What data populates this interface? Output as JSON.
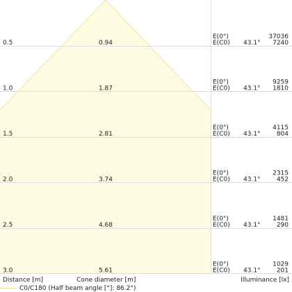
{
  "rows": [
    {
      "distance": "0.5",
      "diameter": "0.94",
      "e0_label": "E(0°)",
      "ec0_label": "E(C0)",
      "angle": "43.1°",
      "e0_value": "37036",
      "ec0_value": "7240"
    },
    {
      "distance": "1.0",
      "diameter": "1.87",
      "e0_label": "E(0°)",
      "ec0_label": "E(C0)",
      "angle": "43.1°",
      "e0_value": "9259",
      "ec0_value": "1810"
    },
    {
      "distance": "1.5",
      "diameter": "2.81",
      "e0_label": "E(0°)",
      "ec0_label": "E(C0)",
      "angle": "43.1°",
      "e0_value": "4115",
      "ec0_value": "804"
    },
    {
      "distance": "2.0",
      "diameter": "3.74",
      "e0_label": "E(0°)",
      "ec0_label": "E(C0)",
      "angle": "43.1°",
      "e0_value": "2315",
      "ec0_value": "452"
    },
    {
      "distance": "2.5",
      "diameter": "4.68",
      "e0_label": "E(0°)",
      "ec0_label": "E(C0)",
      "angle": "43.1°",
      "e0_value": "1481",
      "ec0_value": "290"
    },
    {
      "distance": "3.0",
      "diameter": "5.61",
      "e0_label": "E(0°)",
      "ec0_label": "E(C0)",
      "angle": "43.1°",
      "e0_value": "1029",
      "ec0_value": "201"
    }
  ],
  "footer": {
    "distance_label": "Distance [m]",
    "diameter_label": "Cone diameter [m]",
    "illuminance_label": "Illuminance [lx]"
  },
  "legend": {
    "text": "C0/C180 (Half beam angle [°]: 86.2°)"
  },
  "colors": {
    "cone_fill": "#fdfbe1",
    "cone_edge": "#efe6a8",
    "grid": "#dcdcdc",
    "text": "#222222"
  }
}
